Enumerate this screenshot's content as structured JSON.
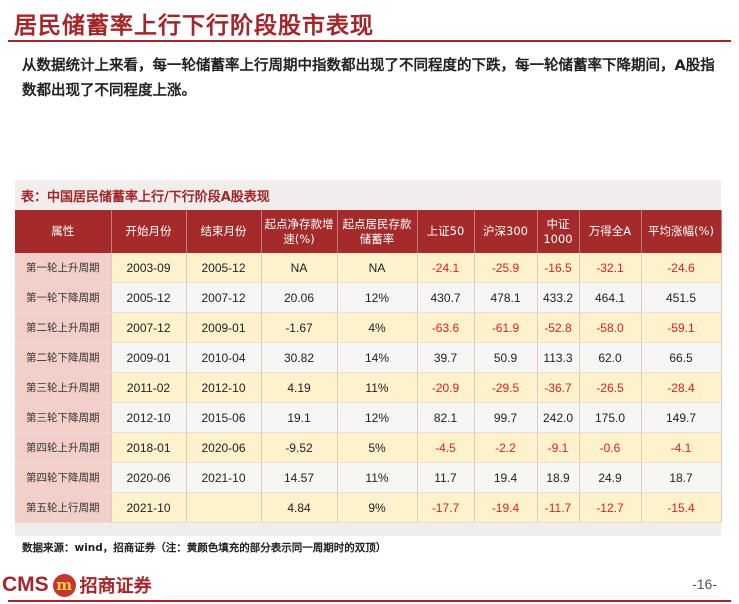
{
  "title": "居民储蓄率上行下行阶段股市表现",
  "intro": "从数据统计上来看，每一轮储蓄率上行周期中指数都出现了不同程度的下跌，每一轮储蓄率下降期间，A股指数都出现了不同程度上涨。",
  "table_title": "表：中国居民储蓄率上行/下行阶段A股表现",
  "headers": [
    "属性",
    "开始月份",
    "结束月份",
    "起点净存款增速(%)",
    "起点居民存款储蓄率",
    "上证50",
    "沪深300",
    "中证1000",
    "万得全A",
    "平均涨幅(%)"
  ],
  "rows": [
    {
      "dir": "up",
      "prop": "第一轮上升周期",
      "start": "2003-09",
      "end": "2005-12",
      "dep": "NA",
      "rate": "NA",
      "sz50": "-24.1",
      "hs300": "-25.9",
      "zz1000": "-16.5",
      "wdqa": "-32.1",
      "avg": "-24.6"
    },
    {
      "dir": "down",
      "prop": "第一轮下降周期",
      "start": "2005-12",
      "end": "2007-12",
      "dep": "20.06",
      "rate": "12%",
      "sz50": "430.7",
      "hs300": "478.1",
      "zz1000": "433.2",
      "wdqa": "464.1",
      "avg": "451.5"
    },
    {
      "dir": "up",
      "prop": "第二轮上升周期",
      "start": "2007-12",
      "end": "2009-01",
      "dep": "-1.67",
      "rate": "4%",
      "sz50": "-63.6",
      "hs300": "-61.9",
      "zz1000": "-52.8",
      "wdqa": "-58.0",
      "avg": "-59.1"
    },
    {
      "dir": "down",
      "prop": "第二轮下降周期",
      "start": "2009-01",
      "end": "2010-04",
      "dep": "30.82",
      "rate": "14%",
      "sz50": "39.7",
      "hs300": "50.9",
      "zz1000": "113.3",
      "wdqa": "62.0",
      "avg": "66.5"
    },
    {
      "dir": "up",
      "prop": "第三轮上升周期",
      "start": "2011-02",
      "end": "2012-10",
      "dep": "4.19",
      "rate": "11%",
      "sz50": "-20.9",
      "hs300": "-29.5",
      "zz1000": "-36.7",
      "wdqa": "-26.5",
      "avg": "-28.4"
    },
    {
      "dir": "down",
      "prop": "第三轮下降周期",
      "start": "2012-10",
      "end": "2015-06",
      "dep": "19.1",
      "rate": "12%",
      "sz50": "82.1",
      "hs300": "99.7",
      "zz1000": "242.0",
      "wdqa": "175.0",
      "avg": "149.7"
    },
    {
      "dir": "up",
      "prop": "第四轮上升周期",
      "start": "2018-01",
      "end": "2020-06",
      "dep": "-9.52",
      "rate": "5%",
      "sz50": "-4.5",
      "hs300": "-2.2",
      "zz1000": "-9.1",
      "wdqa": "-0.6",
      "avg": "-4.1"
    },
    {
      "dir": "down",
      "prop": "第四轮下降周期",
      "start": "2020-06",
      "end": "2021-10",
      "dep": "14.57",
      "rate": "11%",
      "sz50": "11.7",
      "hs300": "19.4",
      "zz1000": "18.9",
      "wdqa": "24.9",
      "avg": "18.7"
    },
    {
      "dir": "up",
      "prop": "第五轮上行周期",
      "start": "2021-10",
      "end": "",
      "dep": "4.84",
      "rate": "9%",
      "sz50": "-17.7",
      "hs300": "-19.4",
      "zz1000": "-11.7",
      "wdqa": "-12.7",
      "avg": "-15.4"
    }
  ],
  "source": "数据来源：wind，招商证券（注：黄颜色填充的部分表示同一周期时的双顶）",
  "footer": {
    "logo_text": "CMS",
    "logo_mark": "m",
    "logo_cn": "招商证券",
    "page": "-16-"
  }
}
